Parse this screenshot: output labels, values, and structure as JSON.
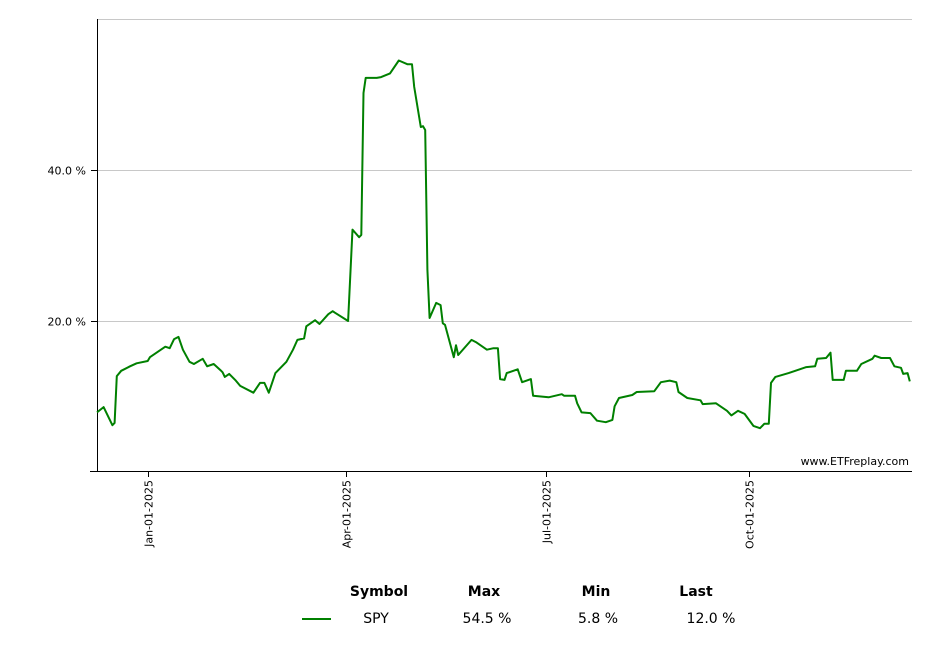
{
  "chart_data": {
    "type": "line",
    "title": "",
    "xlabel": "",
    "ylabel": "",
    "x_range": [
      "2024-12-09",
      "2025-12-14"
    ],
    "ylim": [
      0,
      60
    ],
    "y_ticks": [
      {
        "value": 20,
        "label": "20.0 %"
      },
      {
        "value": 40,
        "label": "40.0 %"
      }
    ],
    "x_ticks": [
      {
        "date": "2025-01-01",
        "label": "Jan-01-2025"
      },
      {
        "date": "2025-04-01",
        "label": "Apr-01-2025"
      },
      {
        "date": "2025-07-01",
        "label": "Jul-01-2025"
      },
      {
        "date": "2025-10-01",
        "label": "Oct-01-2025"
      }
    ],
    "grid": "horizontal",
    "watermark": "www.ETFreplay.com",
    "series": [
      {
        "name": "SPY",
        "color": "#008000",
        "points": [
          [
            "2024-12-09",
            7.9
          ],
          [
            "2024-12-12",
            8.6
          ],
          [
            "2024-12-16",
            6.2
          ],
          [
            "2024-12-17",
            6.5
          ],
          [
            "2024-12-18",
            12.7
          ],
          [
            "2024-12-20",
            13.4
          ],
          [
            "2024-12-24",
            14.0
          ],
          [
            "2024-12-27",
            14.4
          ],
          [
            "2025-01-01",
            14.7
          ],
          [
            "2025-01-02",
            15.2
          ],
          [
            "2025-01-05",
            15.8
          ],
          [
            "2025-01-07",
            16.2
          ],
          [
            "2025-01-09",
            16.6
          ],
          [
            "2025-01-11",
            16.4
          ],
          [
            "2025-01-13",
            17.6
          ],
          [
            "2025-01-15",
            17.9
          ],
          [
            "2025-01-17",
            16.2
          ],
          [
            "2025-01-20",
            14.6
          ],
          [
            "2025-01-22",
            14.3
          ],
          [
            "2025-01-26",
            15.0
          ],
          [
            "2025-01-28",
            14.0
          ],
          [
            "2025-01-31",
            14.3
          ],
          [
            "2025-02-03",
            13.5
          ],
          [
            "2025-02-04",
            13.2
          ],
          [
            "2025-02-05",
            12.6
          ],
          [
            "2025-02-07",
            13.0
          ],
          [
            "2025-02-10",
            12.1
          ],
          [
            "2025-02-12",
            11.4
          ],
          [
            "2025-02-18",
            10.5
          ],
          [
            "2025-02-21",
            11.8
          ],
          [
            "2025-02-23",
            11.8
          ],
          [
            "2025-02-25",
            10.5
          ],
          [
            "2025-02-28",
            13.1
          ],
          [
            "2025-03-05",
            14.6
          ],
          [
            "2025-03-08",
            16.2
          ],
          [
            "2025-03-10",
            17.5
          ],
          [
            "2025-03-13",
            17.7
          ],
          [
            "2025-03-14",
            19.3
          ],
          [
            "2025-03-18",
            20.1
          ],
          [
            "2025-03-20",
            19.6
          ],
          [
            "2025-03-24",
            20.9
          ],
          [
            "2025-03-26",
            21.3
          ],
          [
            "2025-03-27",
            21.1
          ],
          [
            "2025-04-02",
            20.0
          ],
          [
            "2025-04-04",
            32.1
          ],
          [
            "2025-04-07",
            31.1
          ],
          [
            "2025-04-08",
            31.4
          ],
          [
            "2025-04-09",
            50.2
          ],
          [
            "2025-04-10",
            52.2
          ],
          [
            "2025-04-15",
            52.2
          ],
          [
            "2025-04-17",
            52.3
          ],
          [
            "2025-04-21",
            52.8
          ],
          [
            "2025-04-25",
            54.5
          ],
          [
            "2025-04-29",
            54.0
          ],
          [
            "2025-05-01",
            54.0
          ],
          [
            "2025-05-02",
            51.0
          ],
          [
            "2025-05-05",
            45.7
          ],
          [
            "2025-05-06",
            45.8
          ],
          [
            "2025-05-07",
            45.3
          ],
          [
            "2025-05-08",
            26.8
          ],
          [
            "2025-05-09",
            20.4
          ],
          [
            "2025-05-12",
            22.4
          ],
          [
            "2025-05-14",
            22.1
          ],
          [
            "2025-05-15",
            19.7
          ],
          [
            "2025-05-16",
            19.5
          ],
          [
            "2025-05-20",
            15.2
          ],
          [
            "2025-05-21",
            16.8
          ],
          [
            "2025-05-22",
            15.5
          ],
          [
            "2025-05-28",
            17.5
          ],
          [
            "2025-05-30",
            17.2
          ],
          [
            "2025-06-04",
            16.2
          ],
          [
            "2025-06-07",
            16.4
          ],
          [
            "2025-06-09",
            16.4
          ],
          [
            "2025-06-10",
            12.3
          ],
          [
            "2025-06-12",
            12.2
          ],
          [
            "2025-06-13",
            13.1
          ],
          [
            "2025-06-18",
            13.6
          ],
          [
            "2025-06-20",
            11.9
          ],
          [
            "2025-06-24",
            12.3
          ],
          [
            "2025-06-25",
            10.1
          ],
          [
            "2025-07-02",
            9.9
          ],
          [
            "2025-07-08",
            10.3
          ],
          [
            "2025-07-09",
            10.1
          ],
          [
            "2025-07-14",
            10.1
          ],
          [
            "2025-07-15",
            9.1
          ],
          [
            "2025-07-17",
            7.9
          ],
          [
            "2025-07-21",
            7.8
          ],
          [
            "2025-07-24",
            6.8
          ],
          [
            "2025-07-28",
            6.6
          ],
          [
            "2025-07-31",
            6.9
          ],
          [
            "2025-08-01",
            8.7
          ],
          [
            "2025-08-03",
            9.8
          ],
          [
            "2025-08-09",
            10.2
          ],
          [
            "2025-08-11",
            10.6
          ],
          [
            "2025-08-19",
            10.7
          ],
          [
            "2025-08-22",
            11.9
          ],
          [
            "2025-08-26",
            12.1
          ],
          [
            "2025-08-29",
            11.9
          ],
          [
            "2025-08-30",
            10.6
          ],
          [
            "2025-09-03",
            9.8
          ],
          [
            "2025-09-09",
            9.5
          ],
          [
            "2025-09-10",
            9.0
          ],
          [
            "2025-09-16",
            9.1
          ],
          [
            "2025-09-21",
            8.1
          ],
          [
            "2025-09-23",
            7.5
          ],
          [
            "2025-09-26",
            8.1
          ],
          [
            "2025-09-29",
            7.7
          ],
          [
            "2025-10-03",
            6.1
          ],
          [
            "2025-10-06",
            5.8
          ],
          [
            "2025-10-08",
            6.4
          ],
          [
            "2025-10-10",
            6.4
          ],
          [
            "2025-10-11",
            11.8
          ],
          [
            "2025-10-13",
            12.6
          ],
          [
            "2025-10-19",
            13.1
          ],
          [
            "2025-10-22",
            13.4
          ],
          [
            "2025-10-27",
            13.9
          ],
          [
            "2025-10-31",
            14.0
          ],
          [
            "2025-11-01",
            15.0
          ],
          [
            "2025-11-05",
            15.1
          ],
          [
            "2025-11-07",
            15.8
          ],
          [
            "2025-11-08",
            12.2
          ],
          [
            "2025-11-13",
            12.2
          ],
          [
            "2025-11-14",
            13.4
          ],
          [
            "2025-11-19",
            13.4
          ],
          [
            "2025-11-21",
            14.3
          ],
          [
            "2025-11-26",
            15.0
          ],
          [
            "2025-11-27",
            15.4
          ],
          [
            "2025-11-30",
            15.1
          ],
          [
            "2025-12-04",
            15.1
          ],
          [
            "2025-12-06",
            14.0
          ],
          [
            "2025-12-09",
            13.8
          ],
          [
            "2025-12-10",
            13.0
          ],
          [
            "2025-12-12",
            13.1
          ],
          [
            "2025-12-13",
            12.0
          ]
        ]
      }
    ]
  },
  "legend": {
    "headers": {
      "symbol": "Symbol",
      "max": "Max",
      "min": "Min",
      "last": "Last"
    },
    "rows": [
      {
        "symbol": "SPY",
        "max": "54.5 %",
        "min": "5.8 %",
        "last": "12.0 %",
        "color": "#008000"
      }
    ]
  }
}
